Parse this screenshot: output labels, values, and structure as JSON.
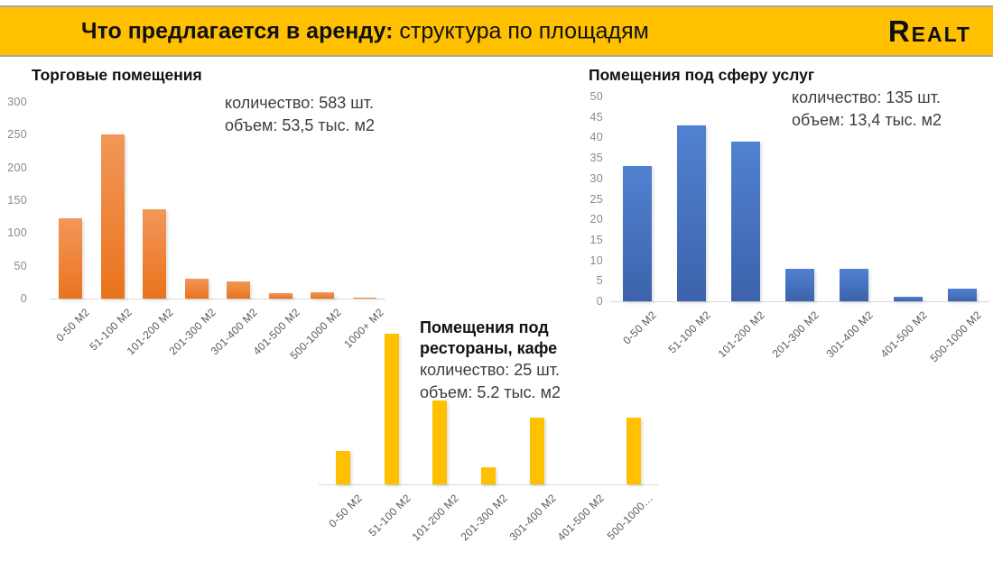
{
  "header": {
    "title_bold": "Что предлагается в аренду:",
    "title_regular": " структура по площадям",
    "logo_text": "Realt",
    "band_color": "#FFC000"
  },
  "chart_data": [
    {
      "type": "bar",
      "title": "Торговые помещения",
      "annotation": [
        "количество: 583 шт.",
        "объем: 53,5 тыс. м2"
      ],
      "categories": [
        "0-50 м2",
        "51-100 м2",
        "101-200 м2",
        "201-300 м2",
        "301-400 м2",
        "401-500 м2",
        "500-1000 м2",
        "1000+ м2"
      ],
      "values": [
        122,
        251,
        136,
        30,
        26,
        8,
        9,
        1
      ],
      "ylim": [
        0,
        300
      ],
      "yticks": [
        0,
        50,
        100,
        150,
        200,
        250,
        300
      ],
      "bar_color": "#ED7D31",
      "grid": false,
      "legend": "none"
    },
    {
      "type": "bar",
      "title": "Помещения под сферу услуг",
      "annotation": [
        "количество: 135 шт.",
        "объем: 13,4 тыс. м2"
      ],
      "categories": [
        "0-50 м2",
        "51-100 м2",
        "101-200 м2",
        "201-300 м2",
        "301-400 м2",
        "401-500 м2",
        "500-1000 м2"
      ],
      "values": [
        33,
        43,
        39,
        8,
        8,
        1,
        3
      ],
      "ylim": [
        0,
        50
      ],
      "yticks": [
        0,
        5,
        10,
        15,
        20,
        25,
        30,
        35,
        40,
        45,
        50
      ],
      "bar_color": "#4472C4",
      "grid": false,
      "legend": "none"
    },
    {
      "type": "bar",
      "title": "Помещения под рестораны, кафе",
      "title_lines": [
        "Помещения под",
        "рестораны, кафе"
      ],
      "annotation": [
        "количество: 25 шт.",
        "объем: 5.2 тыс. м2"
      ],
      "categories": [
        "0-50 м2",
        "51-100 м2",
        "101-200 м2",
        "201-300 м2",
        "301-400 м2",
        "401-500 м2",
        "500-1000…"
      ],
      "values": [
        2,
        9,
        5,
        1,
        4,
        0,
        4
      ],
      "ylim": [
        0,
        9
      ],
      "yticks": [],
      "bar_color": "#FFC000",
      "grid": false,
      "legend": "none"
    }
  ]
}
